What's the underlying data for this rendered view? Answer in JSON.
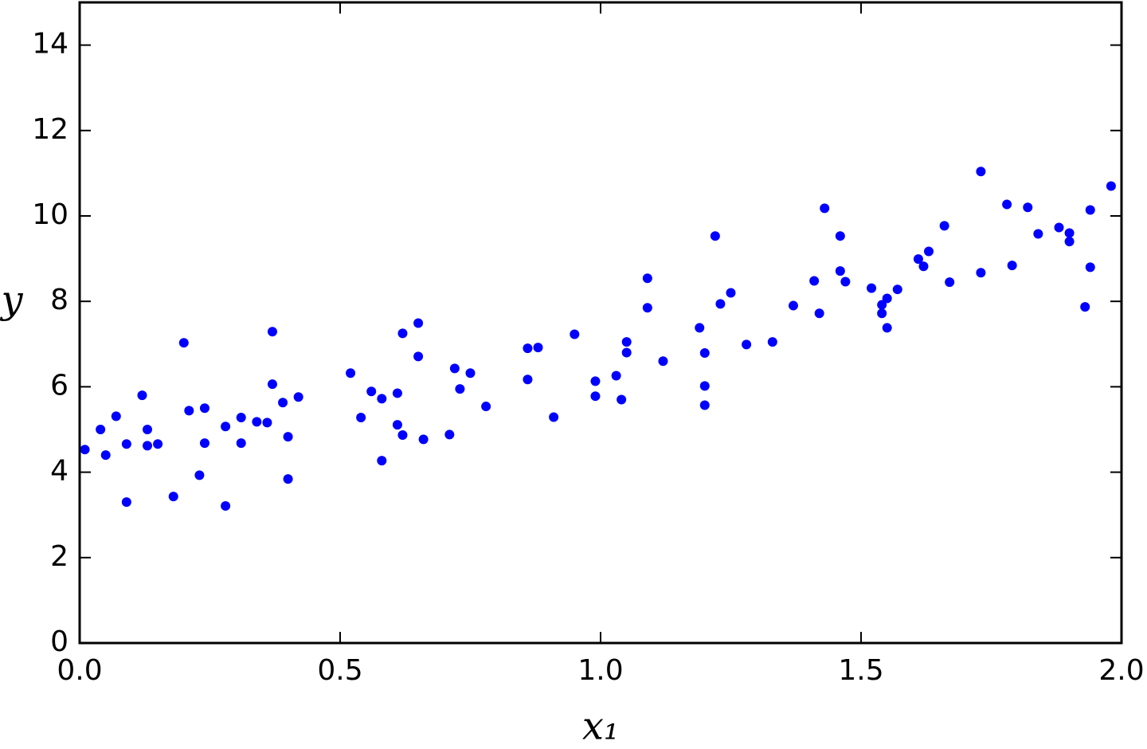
{
  "chart_data": {
    "type": "scatter",
    "xlabel": "x₁",
    "ylabel": "y",
    "color": "#0000ff",
    "x": [
      0.01,
      0.04,
      0.05,
      0.07,
      0.09,
      0.09,
      0.12,
      0.13,
      0.13,
      0.15,
      0.18,
      0.2,
      0.21,
      0.23,
      0.24,
      0.24,
      0.28,
      0.28,
      0.31,
      0.31,
      0.34,
      0.36,
      0.37,
      0.37,
      0.39,
      0.4,
      0.4,
      0.42,
      0.52,
      0.54,
      0.56,
      0.58,
      0.58,
      0.61,
      0.61,
      0.62,
      0.62,
      0.65,
      0.65,
      0.66,
      0.71,
      0.72,
      0.73,
      0.75,
      0.78,
      0.86,
      0.86,
      0.88,
      0.91,
      0.95,
      0.99,
      0.99,
      1.03,
      1.04,
      1.05,
      1.05,
      1.09,
      1.09,
      1.12,
      1.19,
      1.2,
      1.2,
      1.2,
      1.22,
      1.23,
      1.25,
      1.28,
      1.33,
      1.37,
      1.41,
      1.42,
      1.43,
      1.46,
      1.46,
      1.47,
      1.52,
      1.54,
      1.54,
      1.55,
      1.55,
      1.57,
      1.61,
      1.62,
      1.63,
      1.66,
      1.67,
      1.73,
      1.73,
      1.78,
      1.79,
      1.82,
      1.84,
      1.88,
      1.9,
      1.9,
      1.93,
      1.94,
      1.94,
      1.98
    ],
    "values": [
      4.53,
      5.0,
      4.4,
      5.31,
      4.66,
      3.3,
      5.8,
      5.0,
      4.62,
      4.66,
      3.43,
      7.03,
      5.44,
      3.93,
      5.5,
      4.68,
      5.07,
      3.21,
      5.28,
      4.68,
      5.18,
      5.16,
      6.06,
      7.29,
      5.63,
      4.83,
      3.84,
      5.76,
      6.32,
      5.28,
      5.89,
      4.27,
      5.72,
      5.85,
      5.11,
      4.87,
      7.25,
      7.49,
      6.71,
      4.77,
      4.88,
      6.43,
      5.95,
      6.32,
      5.54,
      6.9,
      6.17,
      6.92,
      5.29,
      7.23,
      6.13,
      5.78,
      6.26,
      5.7,
      7.05,
      6.8,
      8.54,
      7.85,
      6.6,
      7.38,
      6.02,
      5.57,
      6.79,
      9.53,
      7.94,
      8.2,
      6.99,
      7.05,
      7.9,
      8.48,
      7.72,
      10.18,
      9.53,
      8.71,
      8.46,
      8.31,
      7.92,
      7.72,
      8.07,
      7.38,
      8.28,
      8.99,
      8.82,
      9.17,
      9.77,
      8.45,
      11.04,
      8.67,
      10.27,
      8.84,
      10.2,
      9.58,
      9.73,
      9.6,
      9.4,
      7.87,
      8.8,
      10.14,
      10.7
    ],
    "xlim": [
      0,
      2
    ],
    "xticks": [
      {
        "value": 0,
        "label": "0.0"
      },
      0.5,
      {
        "value": 1,
        "label": "1.0"
      },
      1.5,
      {
        "value": 2,
        "label": "2.0"
      }
    ],
    "ylim": [
      0,
      15
    ],
    "yticks": [
      0,
      2,
      4,
      6,
      8,
      10,
      12,
      14
    ]
  }
}
